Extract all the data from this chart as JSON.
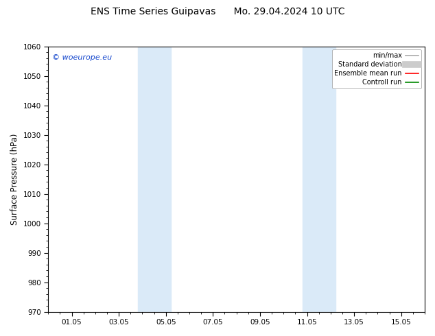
{
  "title_left": "ENS Time Series Guipavas",
  "title_right": "Mo. 29.04.2024 10 UTC",
  "ylabel": "Surface Pressure (hPa)",
  "ylim": [
    970,
    1060
  ],
  "yticks": [
    970,
    980,
    990,
    1000,
    1010,
    1020,
    1030,
    1040,
    1050,
    1060
  ],
  "xlim": [
    0,
    16
  ],
  "xlabel_dates": [
    "01.05",
    "03.05",
    "05.05",
    "07.05",
    "09.05",
    "11.05",
    "13.05",
    "15.05"
  ],
  "xlabel_day_offsets": [
    1,
    3,
    5,
    7,
    9,
    11,
    13,
    15
  ],
  "shaded_bands": [
    {
      "x_start": 3.8,
      "x_end": 5.2
    },
    {
      "x_start": 10.8,
      "x_end": 12.2
    }
  ],
  "shaded_color": "#daeaf8",
  "background_color": "#ffffff",
  "plot_bg_color": "#ffffff",
  "watermark_text": "© woeurope.eu",
  "watermark_color": "#1144cc",
  "legend_items": [
    {
      "label": "min/max",
      "color": "#aaaaaa",
      "lw": 1.2,
      "style": "solid"
    },
    {
      "label": "Standard deviation",
      "color": "#cccccc",
      "lw": 7,
      "style": "solid"
    },
    {
      "label": "Ensemble mean run",
      "color": "#ff0000",
      "lw": 1.2,
      "style": "solid"
    },
    {
      "label": "Controll run",
      "color": "#008800",
      "lw": 1.2,
      "style": "solid"
    }
  ],
  "title_fontsize": 10,
  "tick_fontsize": 7.5,
  "ylabel_fontsize": 8.5,
  "watermark_fontsize": 8,
  "legend_fontsize": 7
}
